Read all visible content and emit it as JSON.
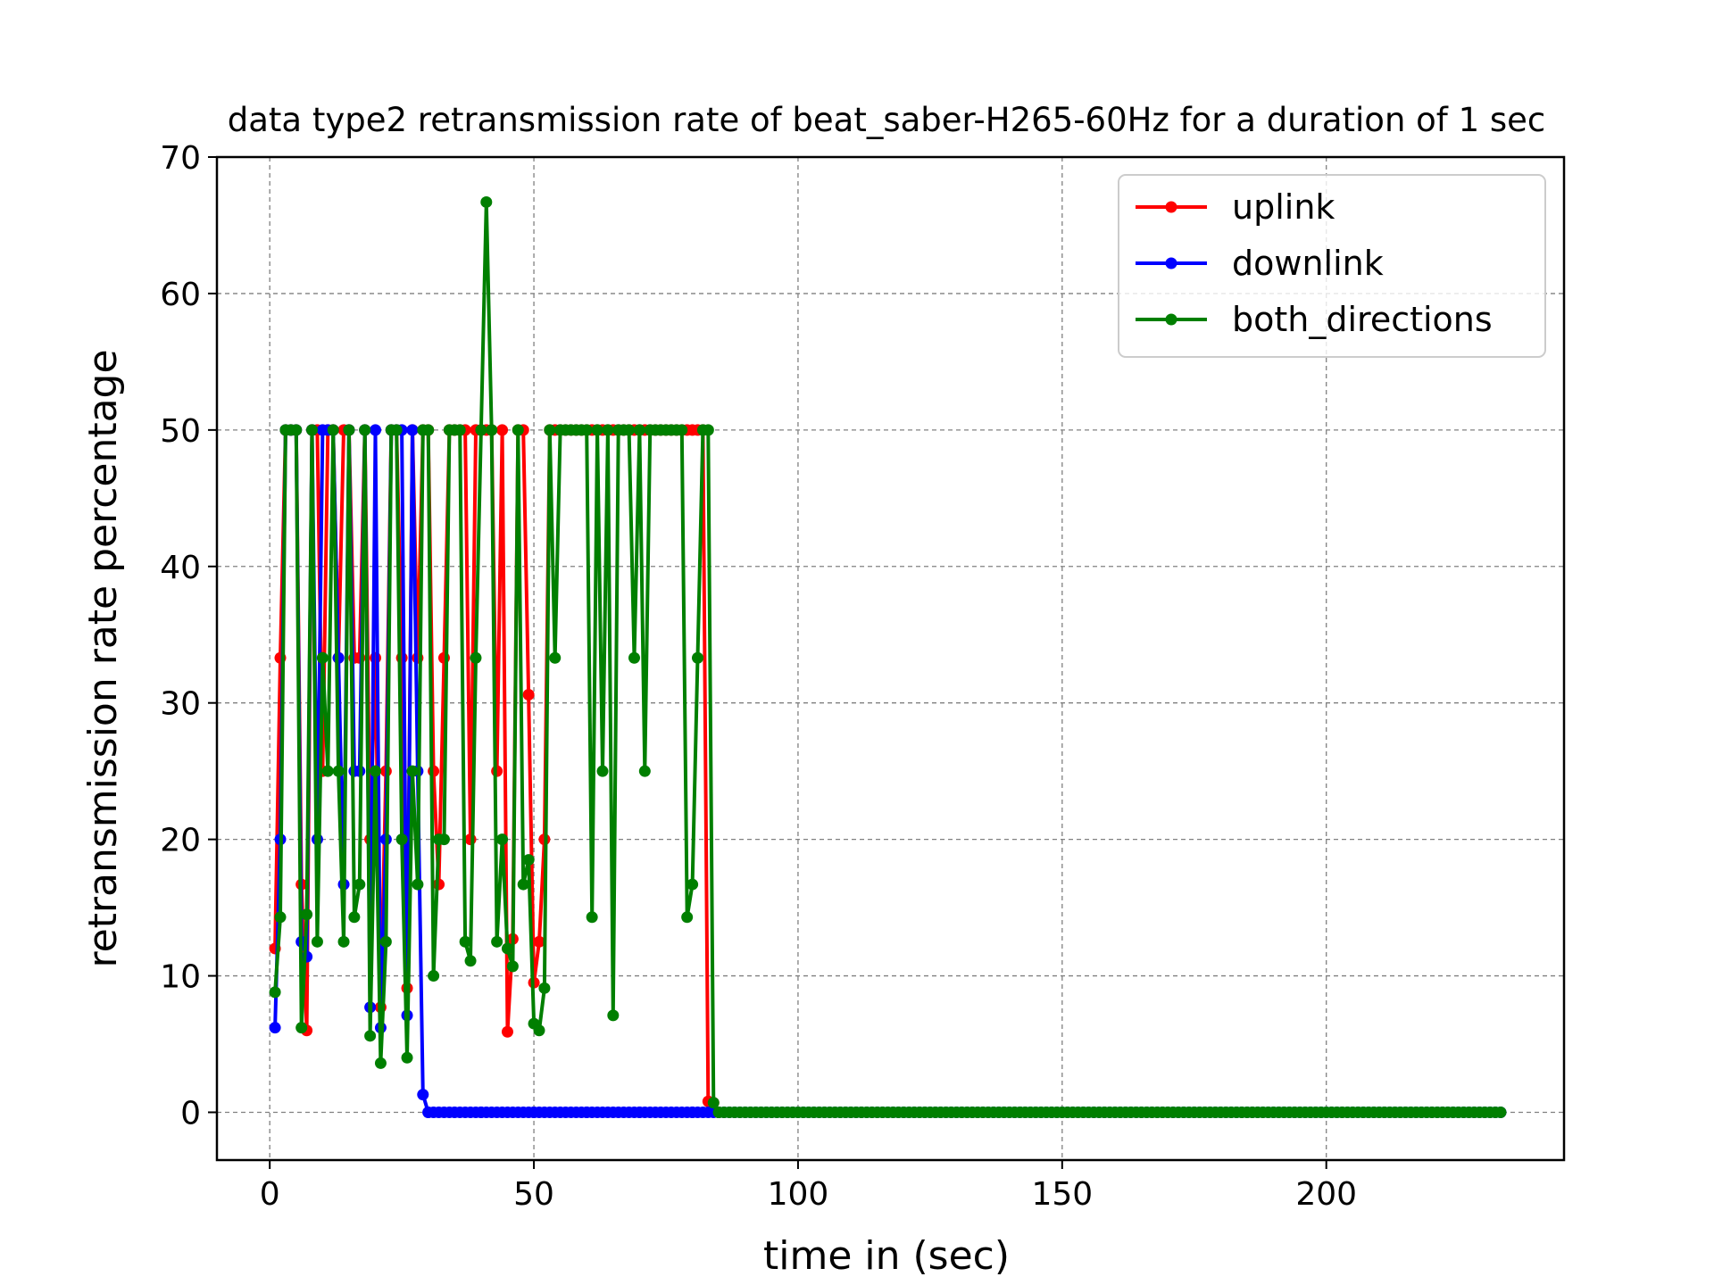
{
  "chart_data": {
    "type": "line",
    "title": "data type2 retransmission rate of beat_saber-H265-60Hz for a duration of 1 sec",
    "xlabel": "time in (sec)",
    "ylabel": "retransmission rate percentage",
    "xlim": [
      -10,
      245
    ],
    "ylim": [
      -3.5,
      70
    ],
    "xticks": [
      0,
      50,
      100,
      150,
      200
    ],
    "yticks": [
      0,
      10,
      20,
      30,
      40,
      50,
      60,
      70
    ],
    "grid": true,
    "legend_position": "top-right",
    "series": [
      {
        "name": "uplink",
        "color": "#ff0000",
        "x": [
          1,
          2,
          3,
          4,
          5,
          6,
          7,
          8,
          9,
          10,
          11,
          12,
          13,
          14,
          15,
          16,
          17,
          18,
          19,
          20,
          21,
          22,
          23,
          24,
          25,
          26,
          27,
          28,
          29,
          30,
          31,
          32,
          33,
          34,
          35,
          36,
          37,
          38,
          39,
          40,
          41,
          42,
          43,
          44,
          45,
          46,
          47,
          48,
          49,
          50,
          51,
          52,
          53,
          54,
          55,
          56,
          57,
          58,
          59,
          60,
          61,
          62,
          63,
          64,
          65,
          66,
          67,
          68,
          69,
          70,
          71,
          72,
          73,
          74,
          75,
          76,
          77,
          78,
          79,
          80,
          81,
          82,
          83,
          84,
          85
        ],
        "y": [
          12,
          33.3,
          50,
          50,
          50,
          16.7,
          6,
          50,
          50,
          25,
          50,
          50,
          33.3,
          50,
          50,
          33.3,
          33.3,
          50,
          20,
          33.3,
          7.7,
          25,
          50,
          50,
          33.3,
          9.1,
          50,
          33.3,
          50,
          50,
          25,
          16.7,
          33.3,
          50,
          50,
          50,
          50,
          20,
          50,
          50,
          50,
          50,
          25,
          50,
          5.9,
          12.7,
          50,
          50,
          30.6,
          9.5,
          12.5,
          20,
          50,
          50,
          50,
          50,
          50,
          50,
          50,
          50,
          50,
          50,
          50,
          50,
          50,
          50,
          50,
          50,
          50,
          50,
          50,
          50,
          50,
          50,
          50,
          50,
          50,
          50,
          50,
          50,
          50,
          50,
          0.8,
          0.7,
          0
        ]
      },
      {
        "name": "downlink",
        "color": "#0000ff",
        "x": [
          1,
          2,
          3,
          4,
          5,
          6,
          7,
          8,
          9,
          10,
          11,
          12,
          13,
          14,
          15,
          16,
          17,
          18,
          19,
          20,
          21,
          22,
          23,
          24,
          25,
          26,
          27,
          28,
          29,
          30,
          40,
          50,
          60,
          70,
          80,
          85
        ],
        "y": [
          6.2,
          20,
          50,
          50,
          50,
          12.5,
          11.4,
          50,
          20,
          50,
          50,
          50,
          33.3,
          16.7,
          50,
          25,
          25,
          50,
          7.7,
          50,
          6.2,
          20,
          50,
          50,
          50,
          7.1,
          50,
          25,
          1.3,
          0,
          0,
          0,
          0,
          0,
          0,
          0
        ]
      },
      {
        "name": "both_directions",
        "color": "#007f00",
        "x": [
          1,
          2,
          3,
          4,
          5,
          6,
          7,
          8,
          9,
          10,
          11,
          12,
          13,
          14,
          15,
          16,
          17,
          18,
          19,
          20,
          21,
          22,
          23,
          24,
          25,
          26,
          27,
          28,
          29,
          30,
          31,
          32,
          33,
          34,
          35,
          36,
          37,
          38,
          39,
          40,
          41,
          42,
          43,
          44,
          45,
          46,
          47,
          48,
          49,
          50,
          51,
          52,
          53,
          54,
          55,
          56,
          57,
          58,
          59,
          60,
          61,
          62,
          63,
          64,
          65,
          66,
          67,
          68,
          69,
          70,
          71,
          72,
          73,
          74,
          75,
          76,
          77,
          78,
          79,
          80,
          81,
          82,
          83,
          84,
          85
        ],
        "y": [
          8.8,
          14.3,
          50,
          50,
          50,
          6.2,
          14.5,
          50,
          12.5,
          33.3,
          25,
          50,
          25,
          12.5,
          50,
          14.3,
          16.7,
          50,
          5.6,
          25,
          3.6,
          12.5,
          50,
          50,
          20,
          4,
          25,
          16.7,
          50,
          50,
          10,
          20,
          20,
          50,
          50,
          50,
          12.5,
          11.1,
          33.3,
          50,
          66.7,
          50,
          12.5,
          20,
          12,
          10.7,
          50,
          16.7,
          18.5,
          6.5,
          6,
          9.1,
          50,
          33.3,
          50,
          50,
          50,
          50,
          50,
          50,
          14.3,
          50,
          25,
          50,
          7.1,
          50,
          50,
          50,
          33.3,
          50,
          25,
          50,
          50,
          50,
          50,
          50,
          50,
          50,
          14.3,
          16.7,
          33.3,
          50,
          50,
          0.7,
          0
        ]
      }
    ]
  }
}
